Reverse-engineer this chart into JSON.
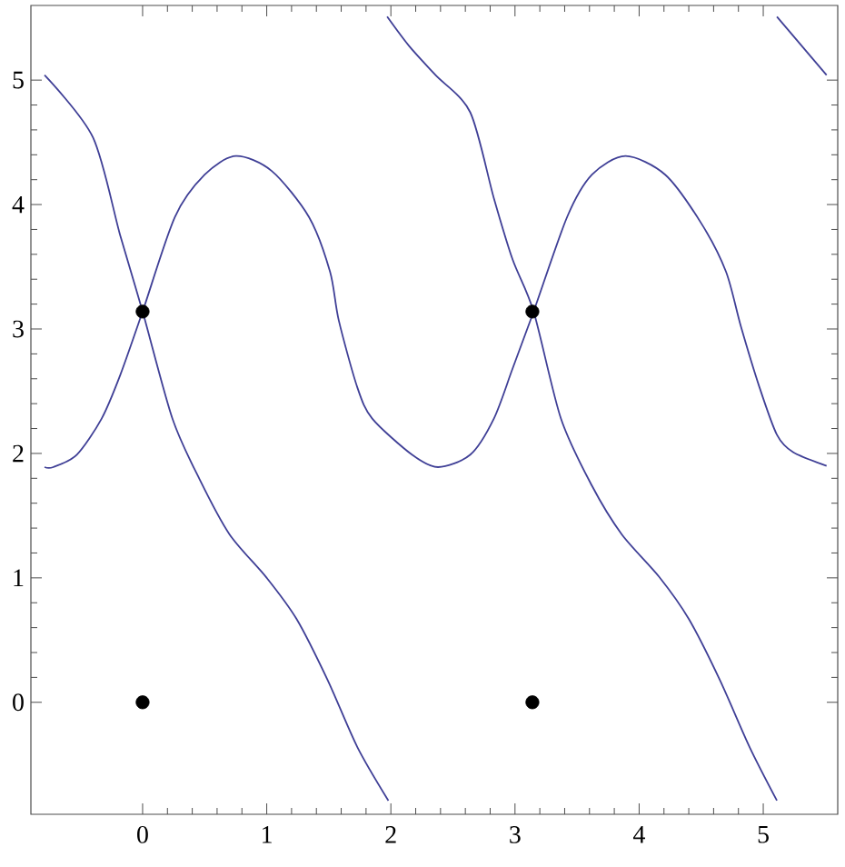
{
  "chart_data": {
    "type": "line",
    "xlim": [
      -0.9,
      5.6
    ],
    "ylim": [
      -0.9,
      5.6
    ],
    "xticks": [
      0,
      1,
      2,
      3,
      4,
      5
    ],
    "yticks": [
      0,
      1,
      2,
      3,
      4,
      5
    ],
    "line_style": "solid",
    "series": [
      {
        "color": "#3f3f96",
        "x": [
          -0.79,
          -0.4,
          -0.18,
          0,
          0.24,
          0.46,
          0.7,
          1.0,
          1.24,
          1.49,
          1.73,
          1.98
        ],
        "values": [
          5.04,
          4.54,
          3.75,
          3.14,
          2.28,
          1.79,
          1.35,
          1.0,
          0.67,
          0.18,
          -0.36,
          -0.79
        ]
      },
      {
        "color": "#3f3f96",
        "x": [
          1.97,
          2.15,
          2.36,
          2.64,
          2.83,
          2.98,
          3.15,
          3.37,
          3.62,
          3.86,
          4.16,
          4.4,
          4.65,
          4.89,
          5.11
        ],
        "values": [
          5.51,
          5.27,
          5.04,
          4.74,
          4.05,
          3.56,
          3.14,
          2.28,
          1.74,
          1.35,
          1.01,
          0.67,
          0.18,
          -0.36,
          -0.79
        ]
      },
      {
        "color": "#3f3f96",
        "x": [
          5.11,
          5.51
        ],
        "values": [
          5.51,
          5.04
        ]
      },
      {
        "color": "#3f3f96",
        "x": [
          -0.79,
          -0.72,
          -0.53,
          -0.33,
          -0.18,
          0,
          0.26,
          0.5,
          0.75,
          1.04,
          1.34,
          1.51,
          1.58,
          1.73,
          1.85,
          2.17,
          2.38,
          2.64,
          2.83,
          2.98,
          3.15,
          3.42,
          3.62,
          3.89,
          4.21,
          4.5,
          4.7,
          4.82,
          4.97,
          5.11,
          5.24,
          5.51
        ],
        "values": [
          1.89,
          1.89,
          1.99,
          2.28,
          2.63,
          3.14,
          3.9,
          4.24,
          4.39,
          4.27,
          3.9,
          3.46,
          3.07,
          2.53,
          2.28,
          1.99,
          1.89,
          1.99,
          2.28,
          2.68,
          3.14,
          3.9,
          4.24,
          4.39,
          4.24,
          3.85,
          3.46,
          3.02,
          2.53,
          2.15,
          2.01,
          1.9
        ]
      },
      {
        "type": "scatter",
        "color": "#000000",
        "marker": "circle",
        "x": [
          0,
          0,
          3.14,
          3.14
        ],
        "values": [
          0,
          3.14,
          0,
          3.14
        ]
      }
    ]
  }
}
